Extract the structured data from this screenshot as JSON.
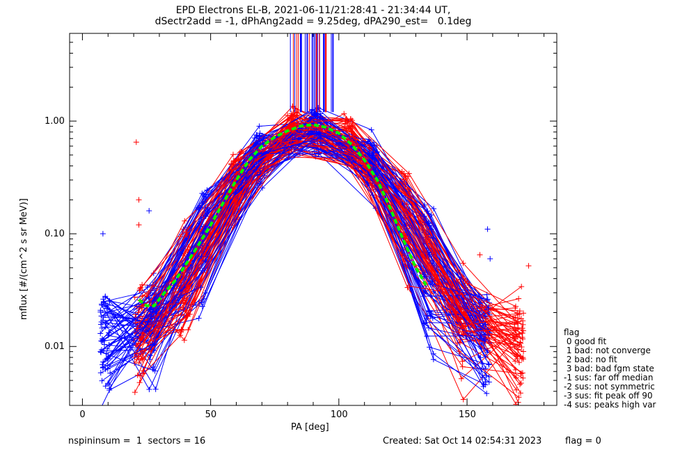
{
  "chart_data": {
    "type": "line",
    "title_line1": "EPD Electrons EL-B, 2021-06-11/21:28:41 - 21:34:44 UT,",
    "title_line2": "dSectr2add = -1, dPhAng2add = 9.25deg, dPA290_est=   0.1deg",
    "xlabel": "PA [deg]",
    "ylabel": "mflux [#/(cm^2 s sr MeV)]",
    "xlim": [
      -5,
      185
    ],
    "ylog": true,
    "ylim": [
      0.003,
      6
    ],
    "xticks": [
      0,
      50,
      100,
      150
    ],
    "xtick_labels": [
      "0",
      "50",
      "100",
      "150"
    ],
    "yticks": [
      0.01,
      0.1,
      1.0
    ],
    "ytick_labels": [
      "0.01",
      "0.10",
      "1.00"
    ],
    "grid": false,
    "colors": {
      "blue": "#0000ff",
      "red": "#ff0000",
      "green": "#00ff00",
      "axis": "#000000"
    },
    "fit_curve": {
      "x": [
        22,
        25,
        28,
        32,
        36,
        40,
        45,
        50,
        55,
        60,
        65,
        70,
        75,
        80,
        85,
        90,
        95,
        100,
        105,
        110,
        115,
        120,
        125,
        130,
        134
      ],
      "y": [
        0.026,
        0.023,
        0.023,
        0.03,
        0.038,
        0.052,
        0.078,
        0.12,
        0.19,
        0.3,
        0.45,
        0.6,
        0.72,
        0.82,
        0.9,
        0.93,
        0.88,
        0.78,
        0.62,
        0.45,
        0.3,
        0.17,
        0.09,
        0.05,
        0.035
      ]
    },
    "spike_x_range": [
      80,
      98
    ],
    "stray_points": [
      {
        "x": 21,
        "y": 0.65,
        "color": "red"
      },
      {
        "x": 22,
        "y": 0.2,
        "color": "red"
      },
      {
        "x": 22,
        "y": 0.12,
        "color": "red"
      },
      {
        "x": 155,
        "y": 0.065,
        "color": "red"
      },
      {
        "x": 174,
        "y": 0.052,
        "color": "red"
      },
      {
        "x": 159,
        "y": 0.06,
        "color": "blue"
      },
      {
        "x": 136,
        "y": 0.11,
        "color": "blue"
      },
      {
        "x": 158,
        "y": 0.11,
        "color": "blue"
      },
      {
        "x": 8,
        "y": 0.1,
        "color": "blue"
      },
      {
        "x": 26,
        "y": 0.16,
        "color": "blue"
      }
    ]
  },
  "legend": {
    "title": "flag",
    "items": [
      " 0 good fit",
      " 1 bad: not converge",
      " 2 bad: no fit",
      " 3 bad: bad fgm state",
      "-1 sus: far off median",
      "-2 sus: not symmetric",
      "-3 sus: fit peak off 90",
      "-4 sus: peaks high var"
    ]
  },
  "footer": {
    "left": "nspininsum =  1  sectors = 16",
    "created": "Created: Sat Oct 14 02:54:31 2023",
    "flag": "flag = 0"
  }
}
